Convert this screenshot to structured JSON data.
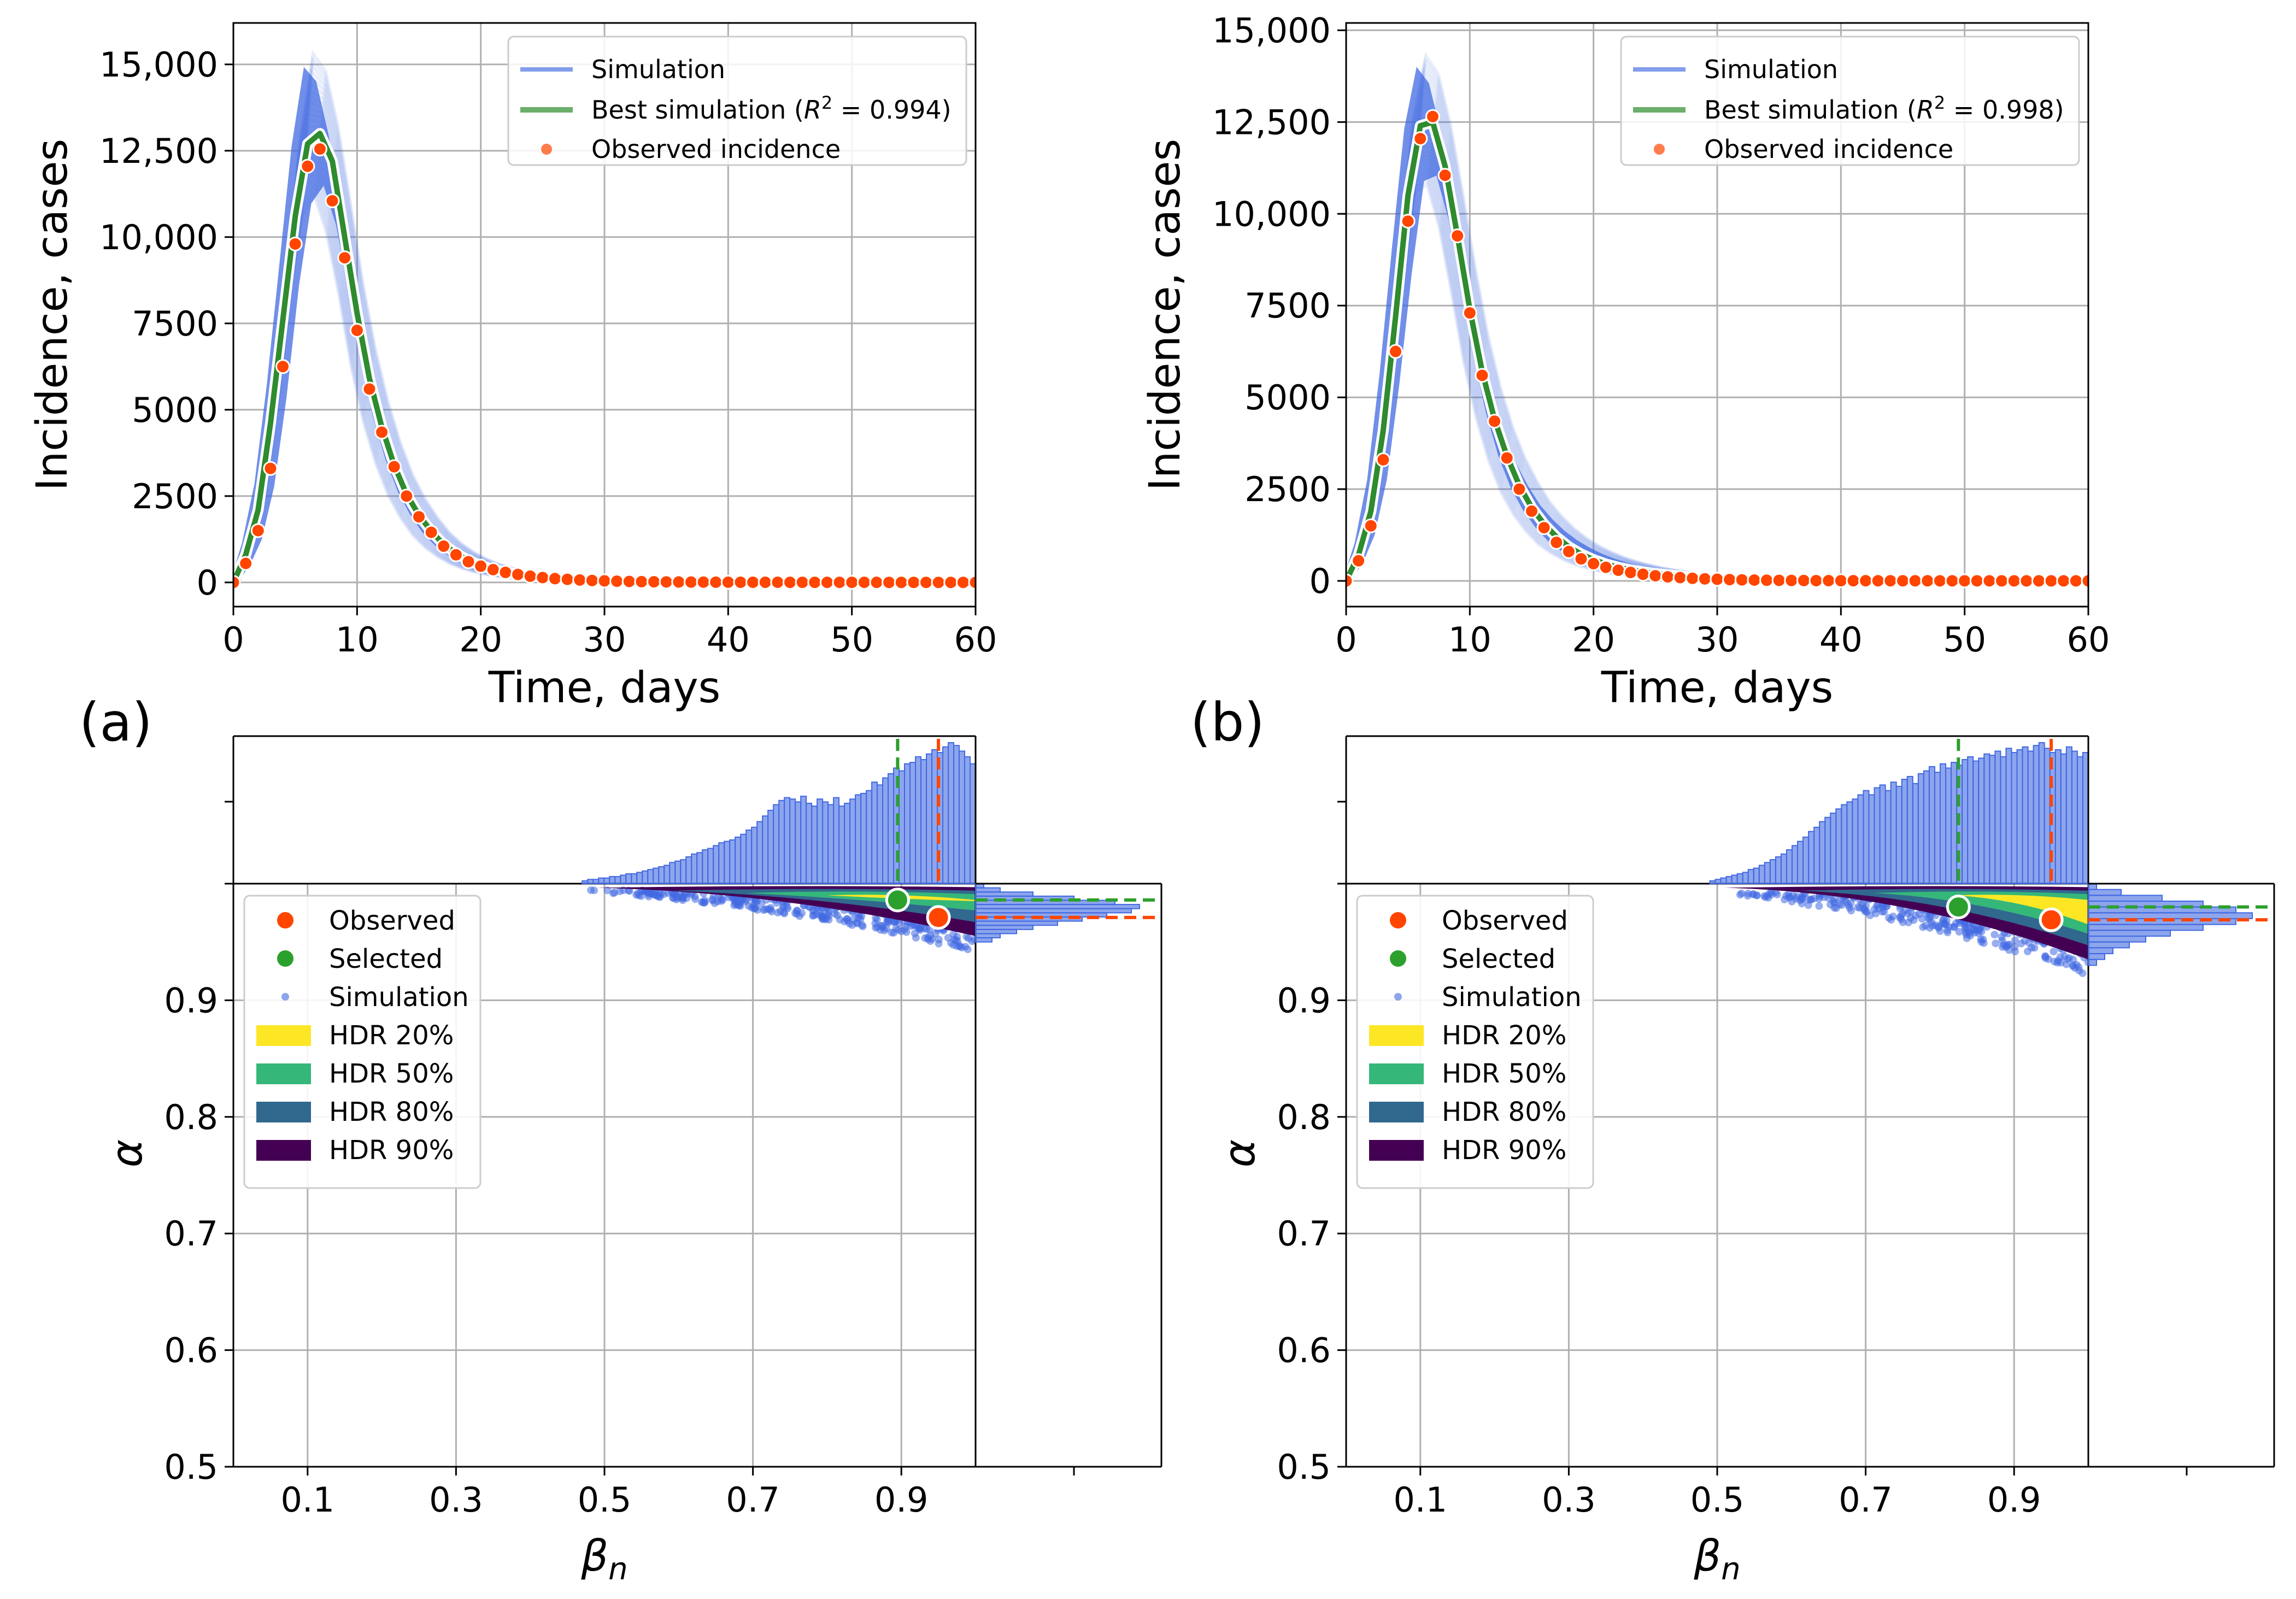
{
  "colors": {
    "simulation": "#4169e1",
    "best": "#2e8b2e",
    "observed": "#ff4500",
    "selected": "#2ca02c",
    "hdr20": "#fde725",
    "hdr50": "#35b779",
    "hdr80": "#31688e",
    "hdr90": "#440154"
  },
  "chart_data": [
    {
      "panel": "(a)",
      "type": "line",
      "xlabel": "Time, days",
      "ylabel": "Incidence, cases",
      "xlim": [
        0,
        60
      ],
      "ylim": [
        -700,
        16200
      ],
      "xticks": [
        "0",
        "10",
        "20",
        "30",
        "40",
        "50",
        "60"
      ],
      "yticks": [
        "0",
        "2500",
        "5000",
        "7500",
        "10,000",
        "12,500",
        "15,000"
      ],
      "legend_position": "top-right",
      "legend": {
        "simulation": "Simulation",
        "best_prefix": "Best simulation (",
        "r": "R",
        "sq": "2",
        "best_suffix": " = 0.994)",
        "observed": "Observed incidence"
      },
      "x": [
        0,
        1,
        2,
        3,
        4,
        5,
        6,
        7,
        8,
        9,
        10,
        11,
        12,
        13,
        14,
        15,
        16,
        17,
        18,
        19,
        20,
        21,
        22,
        23,
        24,
        25,
        26,
        27,
        28,
        29,
        30,
        31,
        32,
        33,
        34,
        35,
        36,
        37,
        38,
        39,
        40,
        41,
        42,
        43,
        44,
        45,
        46,
        47,
        48,
        49,
        50,
        51,
        52,
        53,
        54,
        55,
        56,
        57,
        58,
        59,
        60
      ],
      "observed": [
        0,
        550,
        1500,
        3300,
        6250,
        9800,
        12050,
        12550,
        11050,
        9400,
        7300,
        5600,
        4350,
        3350,
        2500,
        1900,
        1450,
        1050,
        800,
        600,
        470,
        370,
        290,
        230,
        180,
        140,
        110,
        90,
        70,
        55,
        45,
        35,
        28,
        22,
        18,
        15,
        12,
        10,
        8,
        7,
        6,
        5,
        5,
        4,
        4,
        3,
        3,
        3,
        2,
        2,
        2,
        2,
        2,
        1,
        1,
        1,
        1,
        1,
        1,
        1,
        1
      ],
      "best": [
        0,
        800,
        2100,
        4600,
        7600,
        10600,
        12700,
        13000,
        12200,
        10000,
        7800,
        5900,
        4500,
        3400,
        2550,
        1950,
        1480,
        1100,
        840,
        640,
        490,
        380,
        300,
        240,
        190,
        150,
        120,
        95,
        75,
        60,
        48,
        38,
        30,
        24,
        19,
        15,
        12,
        10,
        8,
        7,
        6,
        5,
        4,
        4,
        3,
        3,
        3,
        2,
        2,
        2,
        2,
        1,
        1,
        1,
        1,
        1,
        1,
        1,
        1,
        1,
        1
      ],
      "sim_band_lower": [
        0,
        400,
        1100,
        2500,
        5000,
        8200,
        10600,
        11200,
        10100,
        8300,
        6200,
        4600,
        3400,
        2500,
        1850,
        1350,
        1000,
        740,
        540,
        400,
        300,
        225,
        170,
        130,
        100,
        80,
        60,
        50,
        40,
        30,
        25,
        20,
        16,
        13,
        10,
        8,
        7,
        6,
        5,
        4,
        3,
        3,
        2,
        2,
        2,
        2,
        1,
        1,
        1,
        1,
        1,
        1,
        1,
        1,
        1,
        1,
        1,
        1,
        1,
        1,
        1
      ],
      "sim_band_upper": [
        0,
        1200,
        3000,
        6000,
        9500,
        13000,
        15300,
        14800,
        13200,
        11000,
        8700,
        6800,
        5300,
        4100,
        3150,
        2450,
        1900,
        1450,
        1120,
        870,
        680,
        530,
        420,
        330,
        260,
        210,
        170,
        135,
        110,
        90,
        72,
        58,
        47,
        38,
        31,
        25,
        20,
        17,
        14,
        12,
        10,
        8,
        7,
        6,
        5,
        4,
        4,
        3,
        3,
        3,
        2,
        2,
        2,
        2,
        2,
        2,
        2,
        1,
        1,
        1,
        1
      ]
    },
    {
      "panel": "(b)",
      "type": "line",
      "xlabel": "Time, days",
      "ylabel": "Incidence, cases",
      "xlim": [
        0,
        60
      ],
      "ylim": [
        -700,
        15200
      ],
      "xticks": [
        "0",
        "10",
        "20",
        "30",
        "40",
        "50",
        "60"
      ],
      "yticks": [
        "0",
        "2500",
        "5000",
        "7500",
        "10,000",
        "12,500",
        "15,000"
      ],
      "legend_position": "top-right",
      "legend": {
        "simulation": "Simulation",
        "best_prefix": "Best simulation (",
        "r": "R",
        "sq": "2",
        "best_suffix": " = 0.998)",
        "observed": "Observed incidence"
      },
      "x": [
        0,
        1,
        2,
        3,
        4,
        5,
        6,
        7,
        8,
        9,
        10,
        11,
        12,
        13,
        14,
        15,
        16,
        17,
        18,
        19,
        20,
        21,
        22,
        23,
        24,
        25,
        26,
        27,
        28,
        29,
        30,
        31,
        32,
        33,
        34,
        35,
        36,
        37,
        38,
        39,
        40,
        41,
        42,
        43,
        44,
        45,
        46,
        47,
        48,
        49,
        50,
        51,
        52,
        53,
        54,
        55,
        56,
        57,
        58,
        59,
        60
      ],
      "observed": [
        0,
        550,
        1500,
        3300,
        6250,
        9800,
        12050,
        12650,
        11050,
        9400,
        7300,
        5600,
        4350,
        3350,
        2500,
        1900,
        1450,
        1050,
        800,
        600,
        470,
        370,
        290,
        230,
        180,
        140,
        110,
        90,
        70,
        55,
        45,
        35,
        28,
        22,
        18,
        15,
        12,
        10,
        8,
        7,
        6,
        5,
        5,
        4,
        4,
        3,
        3,
        3,
        2,
        2,
        2,
        2,
        2,
        1,
        1,
        1,
        1,
        1,
        1,
        1,
        1
      ],
      "best": [
        0,
        700,
        1900,
        4100,
        7200,
        10500,
        12400,
        12500,
        11300,
        9400,
        7400,
        5700,
        4400,
        3400,
        2600,
        2000,
        1550,
        1200,
        930,
        730,
        580,
        460,
        370,
        300,
        245,
        200,
        165,
        135,
        110,
        90,
        74,
        60,
        48,
        38,
        30,
        24,
        19,
        15,
        12,
        10,
        8,
        7,
        6,
        5,
        4,
        4,
        3,
        3,
        2,
        2,
        2,
        2,
        1,
        1,
        1,
        1,
        1,
        1,
        1,
        1,
        1
      ],
      "sim_band_lower": [
        0,
        400,
        1100,
        2500,
        5000,
        8000,
        10600,
        10800,
        9600,
        7800,
        5900,
        4400,
        3250,
        2400,
        1800,
        1350,
        1000,
        760,
        580,
        440,
        340,
        260,
        200,
        160,
        125,
        100,
        80,
        65,
        52,
        42,
        34,
        27,
        22,
        18,
        15,
        12,
        10,
        8,
        7,
        6,
        5,
        4,
        3,
        3,
        2,
        2,
        2,
        2,
        1,
        1,
        1,
        1,
        1,
        1,
        1,
        1,
        1,
        1,
        1,
        1,
        1
      ],
      "sim_band_upper": [
        0,
        1100,
        2900,
        5900,
        9400,
        12700,
        14300,
        13800,
        12400,
        10500,
        8500,
        6700,
        5300,
        4200,
        3350,
        2700,
        2150,
        1750,
        1420,
        1160,
        950,
        780,
        640,
        530,
        440,
        360,
        300,
        250,
        205,
        170,
        140,
        115,
        95,
        78,
        64,
        52,
        43,
        35,
        29,
        24,
        20,
        16,
        13,
        11,
        9,
        7,
        6,
        5,
        4,
        3,
        3,
        2,
        2,
        2,
        2,
        1,
        1,
        1,
        1,
        1,
        1
      ]
    },
    {
      "panel": "(a)",
      "type": "scatter",
      "xlabel": "β",
      "xlabel_sub": "n",
      "ylabel": "α",
      "xlim": [
        0,
        1
      ],
      "ylim": [
        0.5,
        1.0
      ],
      "xticks": [
        "0.1",
        "0.3",
        "0.5",
        "0.7",
        "0.9"
      ],
      "yticks": [
        "0.5",
        "0.6",
        "0.7",
        "0.8",
        "0.9"
      ],
      "legend_position": "upper-left",
      "legend": [
        "Observed",
        "Selected",
        "Simulation",
        "HDR 20%",
        "HDR 50%",
        "HDR 80%",
        "HDR 90%"
      ],
      "observed_point": [
        0.95,
        0.971
      ],
      "selected_point": [
        0.895,
        0.986
      ],
      "beta_range": [
        0.47,
        1.0
      ],
      "alpha_range": [
        0.945,
        1.0
      ],
      "histogram_beta_top": [
        0.02,
        0.03,
        0.03,
        0.04,
        0.04,
        0.05,
        0.05,
        0.06,
        0.07,
        0.07,
        0.08,
        0.09,
        0.1,
        0.11,
        0.12,
        0.13,
        0.15,
        0.16,
        0.17,
        0.19,
        0.21,
        0.22,
        0.24,
        0.25,
        0.27,
        0.29,
        0.3,
        0.31,
        0.33,
        0.35,
        0.38,
        0.4,
        0.44,
        0.48,
        0.52,
        0.56,
        0.59,
        0.61,
        0.6,
        0.58,
        0.62,
        0.57,
        0.55,
        0.6,
        0.58,
        0.56,
        0.61,
        0.55,
        0.57,
        0.6,
        0.63,
        0.64,
        0.66,
        0.72,
        0.7,
        0.75,
        0.78,
        0.82,
        0.8,
        0.85,
        0.86,
        0.9,
        0.88,
        0.92,
        0.95,
        0.93,
        0.97,
        1.0,
        0.98,
        0.94,
        0.9,
        0.85
      ],
      "histogram_alpha_right": [
        0.05,
        0.15,
        0.35,
        0.6,
        0.85,
        1.0,
        0.95,
        0.8,
        0.65,
        0.5,
        0.35,
        0.25,
        0.15,
        0.1
      ]
    },
    {
      "panel": "(b)",
      "type": "scatter",
      "xlabel": "β",
      "xlabel_sub": "n",
      "ylabel": "α",
      "xlim": [
        0,
        1
      ],
      "ylim": [
        0.5,
        1.0
      ],
      "xticks": [
        "0.1",
        "0.3",
        "0.5",
        "0.7",
        "0.9"
      ],
      "yticks": [
        "0.5",
        "0.6",
        "0.7",
        "0.8",
        "0.9"
      ],
      "legend_position": "upper-left",
      "legend": [
        "Observed",
        "Selected",
        "Simulation",
        "HDR 20%",
        "HDR 50%",
        "HDR 80%",
        "HDR 90%"
      ],
      "observed_point": [
        0.95,
        0.969
      ],
      "selected_point": [
        0.825,
        0.98
      ],
      "beta_range": [
        0.49,
        1.0
      ],
      "alpha_range": [
        0.925,
        1.0
      ],
      "histogram_beta_top": [
        0.02,
        0.03,
        0.04,
        0.05,
        0.06,
        0.07,
        0.08,
        0.1,
        0.11,
        0.13,
        0.15,
        0.17,
        0.19,
        0.21,
        0.24,
        0.27,
        0.3,
        0.33,
        0.37,
        0.4,
        0.44,
        0.47,
        0.5,
        0.53,
        0.56,
        0.58,
        0.6,
        0.63,
        0.66,
        0.63,
        0.68,
        0.7,
        0.66,
        0.72,
        0.69,
        0.74,
        0.76,
        0.71,
        0.78,
        0.8,
        0.83,
        0.79,
        0.85,
        0.82,
        0.86,
        0.84,
        0.88,
        0.9,
        0.87,
        0.89,
        0.92,
        0.91,
        0.94,
        0.9,
        0.96,
        0.93,
        0.95,
        0.97,
        0.94,
        0.98,
        1.0,
        0.96,
        0.93,
        0.95,
        0.92,
        0.97,
        0.94,
        0.9,
        0.93
      ],
      "histogram_alpha_right": [
        0.05,
        0.2,
        0.45,
        0.7,
        0.9,
        1.0,
        0.9,
        0.7,
        0.5,
        0.35,
        0.25,
        0.15,
        0.1,
        0.05
      ]
    }
  ],
  "panel_labels": [
    "(a)",
    "(b)"
  ]
}
